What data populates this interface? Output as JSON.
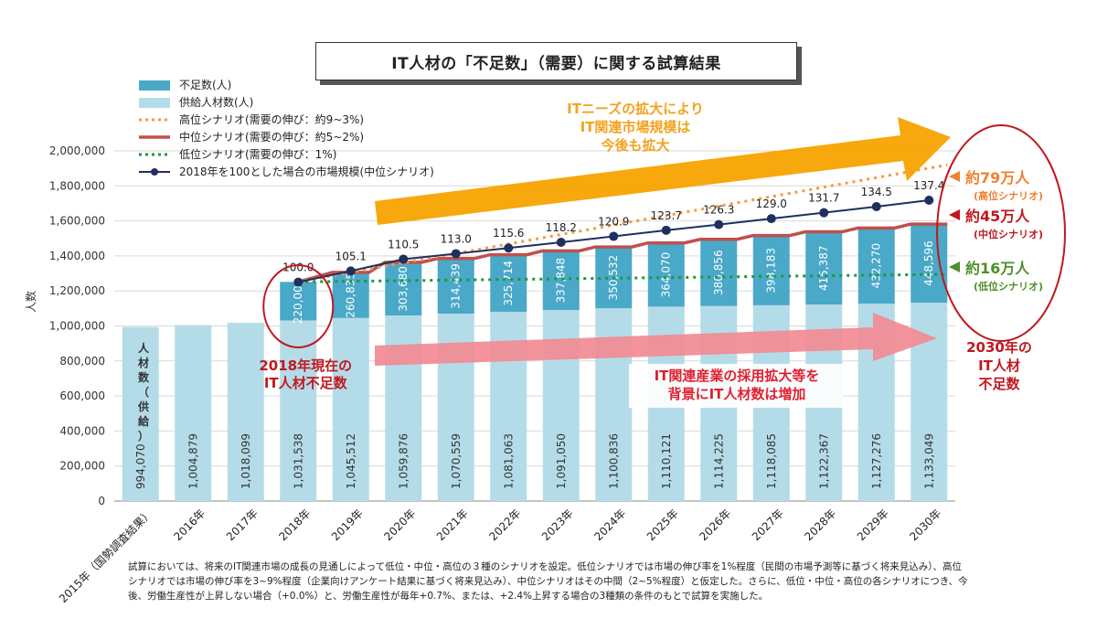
{
  "title": "IT人材の「不足数」（需要）に関する試算結果",
  "note": "試算においては、将来のIT関連市場の成長の見通しによって低位・中位・高位の３種のシナリオを設定。低位シナリオでは市場の伸び率を1%程度（民間の市場予測等に基づく将来見込み）、高位シナリオでは市場の伸び率を3~9%程度（企業向けアンケート結果に基づく将来見込み）、中位シナリオはその中間（2~5%程度）と仮定した。さらに、低位・中位・高位の各シナリオにつき、今後、労働生産性が上昇しない場合（+0.0%）と、労働生産性が毎年+0.7%、または、+2.4%上昇する場合の3種類の条件のもとで試算を実施した。",
  "chart_data": {
    "type": "bar",
    "ylabel": "人数",
    "ylim": [
      0,
      2000000
    ],
    "yticks": [
      "0",
      "200,000",
      "400,000",
      "600,000",
      "800,000",
      "1,000,000",
      "1,200,000",
      "1,400,000",
      "1,600,000",
      "1,800,000",
      "2,000,000"
    ],
    "categories": [
      "2015年（国勢調査結果）",
      "2016年",
      "2017年",
      "2018年",
      "2019年",
      "2020年",
      "2021年",
      "2022年",
      "2023年",
      "2024年",
      "2025年",
      "2026年",
      "2027年",
      "2028年",
      "2029年",
      "2030年"
    ],
    "supply": [
      994070,
      1004879,
      1018099,
      1031538,
      1045512,
      1059876,
      1070559,
      1081063,
      1091050,
      1100836,
      1110121,
      1114225,
      1118085,
      1122367,
      1127276,
      1133049
    ],
    "supply_labels": [
      "994,070",
      "1,004,879",
      "1,018,099",
      "1,031,538",
      "1,045,512",
      "1,059,876",
      "1,070,559",
      "1,081,063",
      "1,091,050",
      "1,100,836",
      "1,110,121",
      "1,114,225",
      "1,118,085",
      "1,122,367",
      "1,127,276",
      "1,133,049"
    ],
    "shortage": [
      null,
      null,
      null,
      220000,
      260835,
      303680,
      314439,
      325714,
      337848,
      350532,
      364070,
      380856,
      398183,
      415387,
      432270,
      448596
    ],
    "shortage_labels": [
      "",
      "",
      "",
      "220,000",
      "260,835",
      "303,680",
      "314,439",
      "325,714",
      "337,848",
      "350,532",
      "364,070",
      "380,856",
      "398,183",
      "415,387",
      "432,270",
      "448,596"
    ],
    "market_index": [
      null,
      null,
      null,
      100.0,
      105.1,
      110.5,
      113.0,
      115.6,
      118.2,
      120.9,
      123.7,
      126.3,
      129.0,
      131.7,
      134.5,
      137.4
    ],
    "market_index_labels": [
      "",
      "",
      "",
      "100.0",
      "105.1",
      "110.5",
      "113.0",
      "115.6",
      "118.2",
      "120.9",
      "123.7",
      "126.3",
      "129.0",
      "131.7",
      "134.5",
      "137.4"
    ],
    "high_scenario_end": 1920000,
    "low_scenario_end": 1295000,
    "legend": [
      {
        "label": "不足数(人)",
        "color": "#4aa8c8"
      },
      {
        "label": "供給人材数(人)",
        "color": "#b4dce8"
      },
      {
        "label": "高位シナリオ(需要の伸び：約9~3%)",
        "color": "#f29a45"
      },
      {
        "label": "中位シナリオ(需要の伸び：約5~2%)",
        "color": "#c0504d"
      },
      {
        "label": "低位シナリオ(需要の伸び：1%)",
        "color": "#1a9a3a"
      },
      {
        "label": "2018年を100とした場合の市場規模(中位シナリオ)",
        "color": "#1f2f5e"
      }
    ],
    "colors": {
      "shortage": "#4aa8c8",
      "supply": "#b4dce8",
      "high": "#f29a45",
      "mid": "#c0504d",
      "low": "#1a9a3a",
      "market": "#1f2f5e"
    }
  },
  "annotations": {
    "supply_vertical": [
      "人",
      "材",
      "数",
      "（",
      "供",
      "給",
      "）"
    ],
    "shortage2018": [
      "2018年現在の",
      "IT人材不足数"
    ],
    "it_needs": [
      "ITニーズの拡大により",
      "IT関連市場規模は",
      "今後も拡大"
    ],
    "hiring": [
      "IT関連産業の採用拡大等を",
      "背景にIT人材数は増加"
    ],
    "y2030": [
      "2030年の",
      "IT人材",
      "不足数"
    ],
    "high": {
      "value": "約79万人",
      "name": "(高位シナリオ)",
      "color": "#f08030"
    },
    "mid": {
      "value": "約45万人",
      "name": "(中位シナリオ)",
      "color": "#c0181f"
    },
    "low": {
      "value": "約16万人",
      "name": "(低位シナリオ)",
      "color": "#4f8f2a"
    }
  }
}
